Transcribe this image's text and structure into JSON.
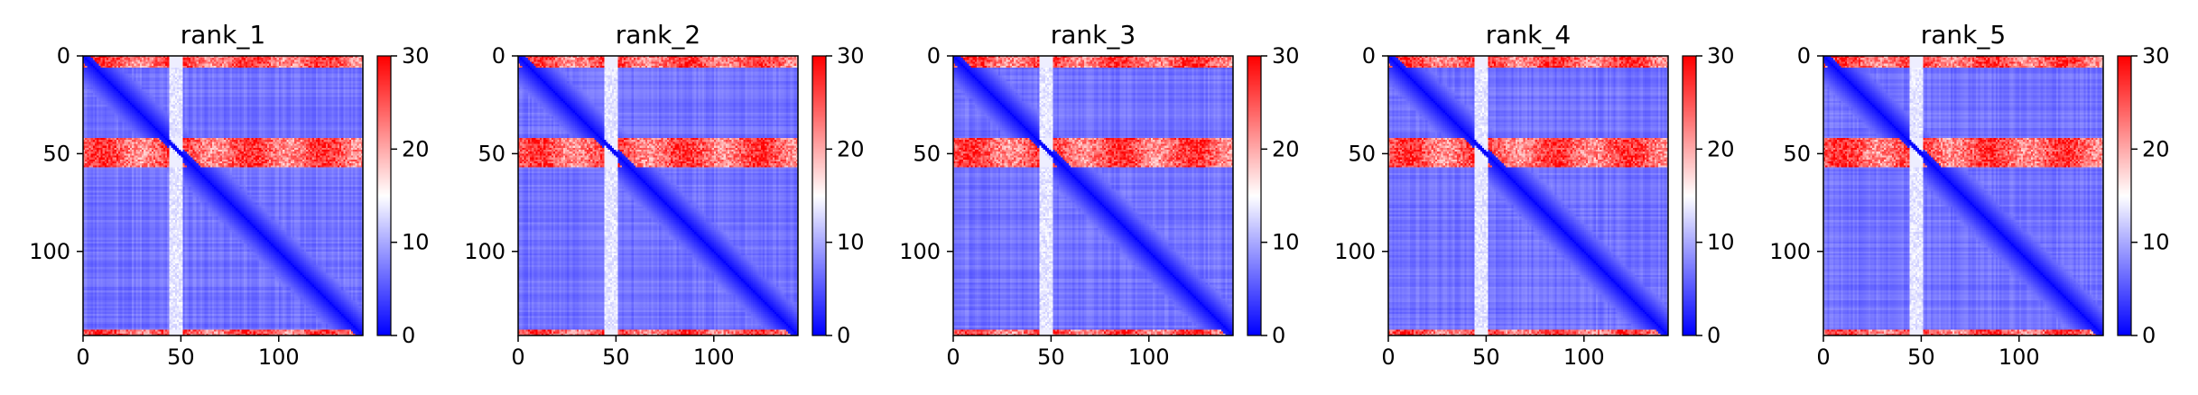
{
  "chart_data": [
    {
      "type": "heatmap",
      "title": "rank_1",
      "matrix_size": 143,
      "xlim": [
        0,
        143
      ],
      "ylim": [
        143,
        0
      ],
      "x_ticks": [
        0,
        50,
        100
      ],
      "y_ticks": [
        0,
        50,
        100
      ],
      "colorbar": {
        "min": 0,
        "max": 30,
        "ticks": [
          0,
          10,
          20,
          30
        ],
        "colormap": "bwr"
      },
      "features": {
        "high_rows": [
          [
            0,
            6
          ],
          [
            42,
            57
          ],
          [
            140,
            143
          ]
        ],
        "low_cols": [
          [
            44,
            51
          ]
        ],
        "diagonal_value": 0,
        "background_value": 5
      }
    },
    {
      "type": "heatmap",
      "title": "rank_2",
      "matrix_size": 143,
      "xlim": [
        0,
        143
      ],
      "ylim": [
        143,
        0
      ],
      "x_ticks": [
        0,
        50,
        100
      ],
      "y_ticks": [
        0,
        50,
        100
      ],
      "colorbar": {
        "min": 0,
        "max": 30,
        "ticks": [
          0,
          10,
          20,
          30
        ],
        "colormap": "bwr"
      },
      "features": {
        "high_rows": [
          [
            0,
            6
          ],
          [
            42,
            57
          ],
          [
            140,
            143
          ]
        ],
        "low_cols": [
          [
            44,
            51
          ]
        ],
        "diagonal_value": 0,
        "background_value": 5
      }
    },
    {
      "type": "heatmap",
      "title": "rank_3",
      "matrix_size": 143,
      "xlim": [
        0,
        143
      ],
      "ylim": [
        143,
        0
      ],
      "x_ticks": [
        0,
        50,
        100
      ],
      "y_ticks": [
        0,
        50,
        100
      ],
      "colorbar": {
        "min": 0,
        "max": 30,
        "ticks": [
          0,
          10,
          20,
          30
        ],
        "colormap": "bwr"
      },
      "features": {
        "high_rows": [
          [
            0,
            6
          ],
          [
            42,
            57
          ],
          [
            140,
            143
          ]
        ],
        "low_cols": [
          [
            44,
            51
          ]
        ],
        "diagonal_value": 0,
        "background_value": 5
      }
    },
    {
      "type": "heatmap",
      "title": "rank_4",
      "matrix_size": 143,
      "xlim": [
        0,
        143
      ],
      "ylim": [
        143,
        0
      ],
      "x_ticks": [
        0,
        50,
        100
      ],
      "y_ticks": [
        0,
        50,
        100
      ],
      "colorbar": {
        "min": 0,
        "max": 30,
        "ticks": [
          0,
          10,
          20,
          30
        ],
        "colormap": "bwr"
      },
      "features": {
        "high_rows": [
          [
            0,
            6
          ],
          [
            42,
            57
          ],
          [
            140,
            143
          ]
        ],
        "low_cols": [
          [
            44,
            51
          ]
        ],
        "diagonal_value": 0,
        "background_value": 5
      }
    },
    {
      "type": "heatmap",
      "title": "rank_5",
      "matrix_size": 143,
      "xlim": [
        0,
        143
      ],
      "ylim": [
        143,
        0
      ],
      "x_ticks": [
        0,
        50,
        100
      ],
      "y_ticks": [
        0,
        50,
        100
      ],
      "colorbar": {
        "min": 0,
        "max": 30,
        "ticks": [
          0,
          10,
          20,
          30
        ],
        "colormap": "bwr"
      },
      "features": {
        "high_rows": [
          [
            0,
            6
          ],
          [
            42,
            57
          ],
          [
            140,
            143
          ]
        ],
        "low_cols": [
          [
            44,
            51
          ]
        ],
        "diagonal_value": 0,
        "background_value": 5
      }
    }
  ]
}
